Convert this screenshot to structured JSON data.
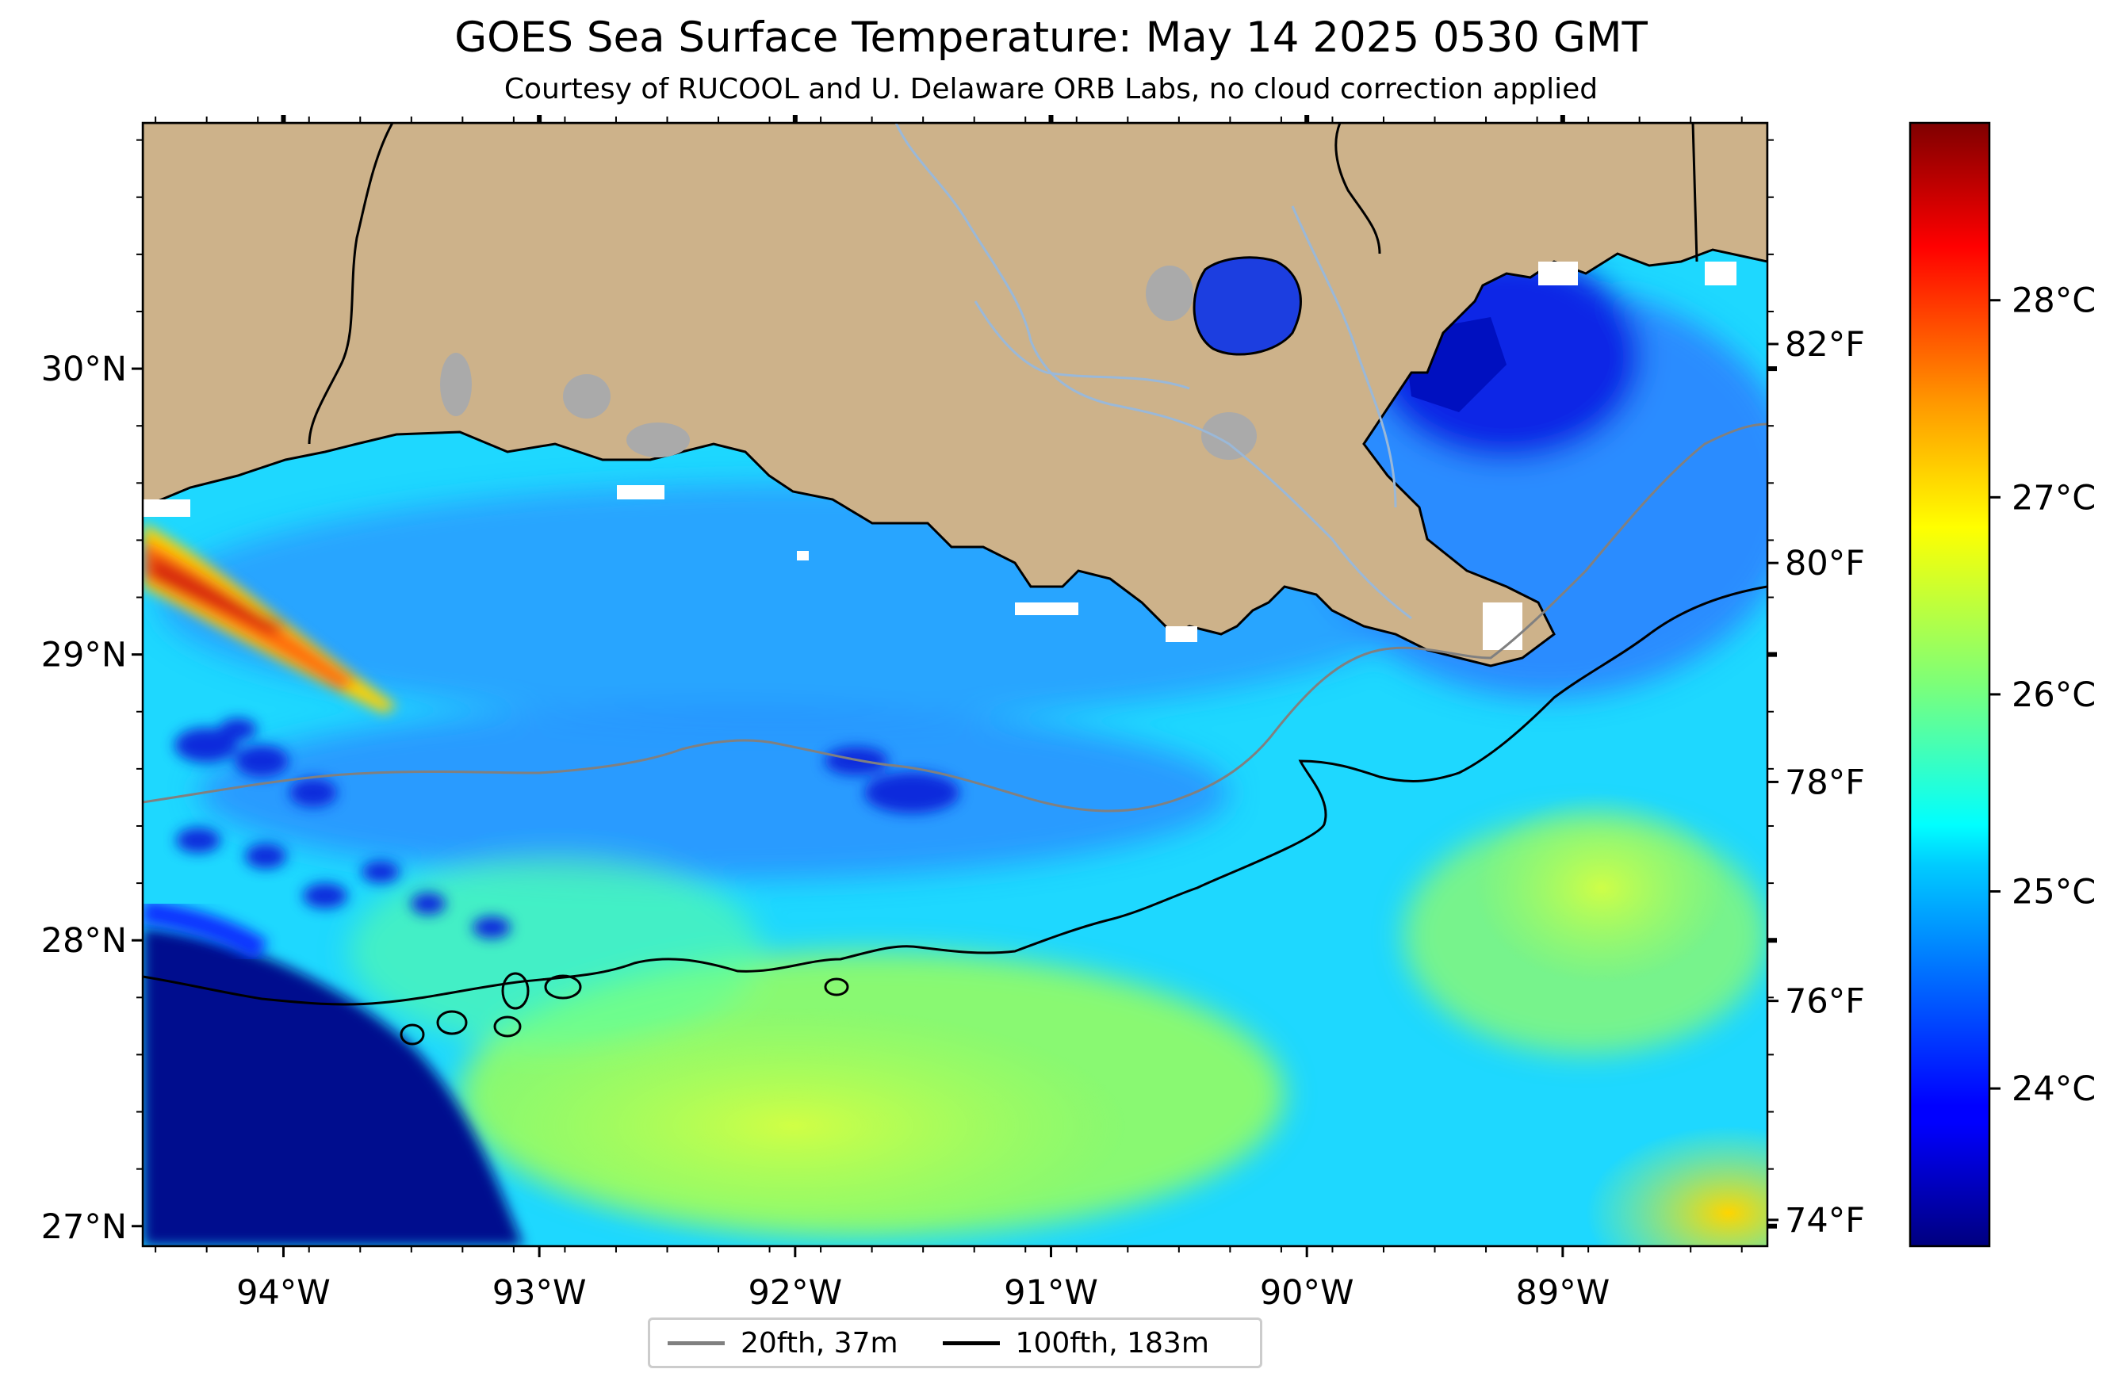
{
  "title": "GOES Sea Surface Temperature: May 14 2025 0530 GMT",
  "subtitle": "Courtesy of RUCOOL and U. Delaware ORB Labs, no cloud correction applied",
  "map": {
    "extent": {
      "lon_min": -94.55,
      "lon_max": -88.2,
      "lat_min": 26.93,
      "lat_max": 30.86
    },
    "lon_ticks": [
      {
        "value": -94,
        "label": "94°W"
      },
      {
        "value": -93,
        "label": "93°W"
      },
      {
        "value": -92,
        "label": "92°W"
      },
      {
        "value": -91,
        "label": "91°W"
      },
      {
        "value": -90,
        "label": "90°W"
      },
      {
        "value": -89,
        "label": "89°W"
      }
    ],
    "lat_ticks": [
      {
        "value": 30,
        "label": "30°N"
      },
      {
        "value": 29,
        "label": "29°N"
      },
      {
        "value": 28,
        "label": "28°N"
      },
      {
        "value": 27,
        "label": "27°N"
      }
    ],
    "f_ticks": [
      {
        "value": 82,
        "label": "82°F"
      },
      {
        "value": 80,
        "label": "80°F"
      },
      {
        "value": 78,
        "label": "78°F"
      },
      {
        "value": 76,
        "label": "76°F"
      },
      {
        "value": 74,
        "label": "74°F"
      }
    ],
    "land_color": "#cdb28a",
    "lake_color": "#aaaaaa",
    "river_color": "#9ab8d8",
    "isobath_20fth_color": "#808080",
    "isobath_100fth_color": "#000000"
  },
  "colorbar": {
    "cmap": "jet",
    "c_min": 23.2,
    "c_max": 28.9,
    "c_ticks": [
      {
        "value": 24,
        "label": "24°C"
      },
      {
        "value": 25,
        "label": "25°C"
      },
      {
        "value": 26,
        "label": "26°C"
      },
      {
        "value": 27,
        "label": "27°C"
      },
      {
        "value": 28,
        "label": "28°C"
      }
    ]
  },
  "legend": {
    "items": [
      {
        "label": "20fth, 37m",
        "color": "#808080"
      },
      {
        "label": "100fth, 183m",
        "color": "#000000"
      }
    ]
  }
}
